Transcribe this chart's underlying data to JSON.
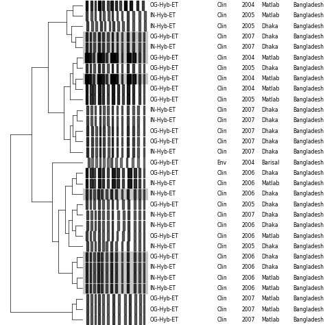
{
  "rows": [
    {
      "label": "OG-Hyb-ET",
      "source": "Clin",
      "year": "2004",
      "location": "Matlab",
      "country": "Bangladesh",
      "highlight": false
    },
    {
      "label": "IN-Hyb-ET",
      "source": "Clin",
      "year": "2005",
      "location": "Matlab",
      "country": "Bangladesh",
      "highlight": false
    },
    {
      "label": "IN-Hyb-ET",
      "source": "Clin",
      "year": "2005",
      "location": "Dhaka",
      "country": "Bangladesh",
      "highlight": false
    },
    {
      "label": "OG-Hyb-ET",
      "source": "Clin",
      "year": "2007",
      "location": "Dhaka",
      "country": "Bangladesh",
      "highlight": true
    },
    {
      "label": "IN-Hyb-ET",
      "source": "Clin",
      "year": "2007",
      "location": "Dhaka",
      "country": "Bangladesh",
      "highlight": true
    },
    {
      "label": "OG-Hyb-ET",
      "source": "Clin",
      "year": "2004",
      "location": "Matlab",
      "country": "Bangladesh",
      "highlight": true
    },
    {
      "label": "OG-Hyb-ET",
      "source": "Clin",
      "year": "2005",
      "location": "Dhaka",
      "country": "Bangladesh",
      "highlight": false
    },
    {
      "label": "OG-Hyb-ET",
      "source": "Clin",
      "year": "2004",
      "location": "Matlab",
      "country": "Bangladesh",
      "highlight": true
    },
    {
      "label": "OG-Hyb-ET",
      "source": "Clin",
      "year": "2004",
      "location": "Matlab",
      "country": "Bangladesh",
      "highlight": false
    },
    {
      "label": "OG-Hyb-ET",
      "source": "Clin",
      "year": "2005",
      "location": "Matlab",
      "country": "Bangladesh",
      "highlight": false
    },
    {
      "label": "IN-Hyb-ET",
      "source": "Clin",
      "year": "2007",
      "location": "Dhaka",
      "country": "Bangladesh",
      "highlight": false
    },
    {
      "label": "IN-Hyb-ET",
      "source": "Clin",
      "year": "2007",
      "location": "Dhaka",
      "country": "Bangladesh",
      "highlight": false
    },
    {
      "label": "OG-Hyb-ET",
      "source": "Clin",
      "year": "2007",
      "location": "Dhaka",
      "country": "Bangladesh",
      "highlight": false
    },
    {
      "label": "OG-Hyb-ET",
      "source": "Clin",
      "year": "2007",
      "location": "Dhaka",
      "country": "Bangladesh",
      "highlight": false
    },
    {
      "label": "IN-Hyb-ET",
      "source": "Clin",
      "year": "2007",
      "location": "Dhaka",
      "country": "Bangladesh",
      "highlight": false
    },
    {
      "label": "OG-Hyb-ET",
      "source": "Env",
      "year": "2004",
      "location": "Barisal",
      "country": "Bangladesh",
      "highlight": false
    },
    {
      "label": "OG-Hyb-ET",
      "source": "Clin",
      "year": "2006",
      "location": "Dhaka",
      "country": "Bangladesh",
      "highlight": false
    },
    {
      "label": "IN-Hyb-ET",
      "source": "Clin",
      "year": "2006",
      "location": "Matlab",
      "country": "Bangladesh",
      "highlight": false
    },
    {
      "label": "IN-Hyb-ET",
      "source": "Clin",
      "year": "2006",
      "location": "Dhaka",
      "country": "Bangladesh",
      "highlight": true
    },
    {
      "label": "OG-Hyb-ET",
      "source": "Clin",
      "year": "2005",
      "location": "Dhaka",
      "country": "Bangladesh",
      "highlight": false
    },
    {
      "label": "IN-Hyb-ET",
      "source": "Clin",
      "year": "2007",
      "location": "Dhaka",
      "country": "Bangladesh",
      "highlight": false
    },
    {
      "label": "IN-Hyb-ET",
      "source": "Clin",
      "year": "2006",
      "location": "Dhaka",
      "country": "Bangladesh",
      "highlight": false
    },
    {
      "label": "OG-Hyb-ET",
      "source": "Clin",
      "year": "2006",
      "location": "Matlab",
      "country": "Bangladesh",
      "highlight": false
    },
    {
      "label": "IN-Hyb-ET",
      "source": "Clin",
      "year": "2005",
      "location": "Dhaka",
      "country": "Bangladesh",
      "highlight": false
    },
    {
      "label": "OG-Hyb-ET",
      "source": "Clin",
      "year": "2006",
      "location": "Dhaka",
      "country": "Bangladesh",
      "highlight": true
    },
    {
      "label": "IN-Hyb-ET",
      "source": "Clin",
      "year": "2006",
      "location": "Dhaka",
      "country": "Bangladesh",
      "highlight": true
    },
    {
      "label": "IN-Hyb-ET",
      "source": "Clin",
      "year": "2006",
      "location": "Matlab",
      "country": "Bangladesh",
      "highlight": true
    },
    {
      "label": "IN-Hyb-ET",
      "source": "Clin",
      "year": "2006",
      "location": "Matlab",
      "country": "Bangladesh",
      "highlight": true
    },
    {
      "label": "OG-Hyb-ET",
      "source": "Clin",
      "year": "2007",
      "location": "Matlab",
      "country": "Bangladesh",
      "highlight": false
    },
    {
      "label": "OG-Hyb-ET",
      "source": "Clin",
      "year": "2007",
      "location": "Matlab",
      "country": "Bangladesh",
      "highlight": false
    },
    {
      "label": "OG-Hyb-ET",
      "source": "Clin",
      "year": "2007",
      "location": "Matlab",
      "country": "Bangladesh",
      "highlight": false
    }
  ],
  "band_sets": [
    [
      3,
      8,
      12,
      16,
      20,
      25,
      29,
      34,
      38,
      43,
      49,
      56,
      62
    ],
    [
      3,
      8,
      12,
      17,
      21,
      26,
      30,
      35,
      40,
      46,
      52,
      58,
      64
    ],
    [
      4,
      9,
      13,
      18,
      22,
      27,
      31,
      36,
      41,
      46,
      52,
      58,
      64
    ],
    [
      3,
      7,
      11,
      16,
      20,
      25,
      30,
      35,
      40,
      46,
      52,
      58,
      63
    ],
    [
      3,
      7,
      11,
      16,
      20,
      25,
      30,
      35,
      40,
      46,
      52,
      58,
      63
    ],
    [
      2,
      6,
      10,
      15,
      19,
      24,
      29,
      34,
      40,
      46,
      52,
      58,
      63
    ],
    [
      3,
      7,
      11,
      16,
      20,
      25,
      30,
      35,
      40,
      46,
      52,
      58,
      63
    ],
    [
      2,
      6,
      10,
      15,
      19,
      24,
      29,
      34,
      40,
      46,
      52,
      58,
      63
    ],
    [
      3,
      7,
      11,
      16,
      20,
      25,
      30,
      36,
      41,
      46,
      52,
      58,
      63
    ],
    [
      3,
      7,
      11,
      16,
      20,
      25,
      30,
      36,
      41,
      46,
      52,
      58,
      63
    ],
    [
      4,
      8,
      12,
      17,
      21,
      25,
      30,
      35,
      40,
      46,
      52,
      57,
      63
    ],
    [
      4,
      8,
      12,
      17,
      21,
      25,
      30,
      35,
      40,
      46,
      52,
      57,
      63
    ],
    [
      4,
      9,
      13,
      17,
      21,
      26,
      30,
      35,
      40,
      46,
      52,
      57,
      63
    ],
    [
      4,
      9,
      13,
      17,
      21,
      26,
      30,
      35,
      40,
      46,
      52,
      57,
      63
    ],
    [
      4,
      9,
      13,
      17,
      21,
      26,
      30,
      35,
      40,
      46,
      52,
      57,
      63
    ],
    [
      5,
      9,
      13,
      17,
      21,
      25,
      29,
      34,
      39,
      45,
      51,
      57,
      63
    ],
    [
      3,
      7,
      11,
      16,
      20,
      25,
      30,
      35,
      41,
      47,
      53,
      58,
      63
    ],
    [
      3,
      7,
      11,
      16,
      20,
      25,
      30,
      35,
      41,
      47,
      53,
      58,
      63
    ],
    [
      3,
      7,
      11,
      15,
      19,
      24,
      29,
      34,
      40,
      46,
      53,
      58,
      63
    ],
    [
      3,
      7,
      11,
      16,
      20,
      25,
      30,
      35,
      41,
      47,
      53,
      58,
      63
    ],
    [
      4,
      8,
      12,
      16,
      20,
      25,
      30,
      36,
      42,
      47,
      53,
      58,
      63
    ],
    [
      4,
      8,
      12,
      16,
      20,
      25,
      30,
      36,
      42,
      47,
      53,
      58,
      63
    ],
    [
      3,
      7,
      11,
      16,
      20,
      25,
      30,
      35,
      41,
      47,
      53,
      58,
      63
    ],
    [
      4,
      8,
      12,
      16,
      20,
      24,
      29,
      34,
      40,
      46,
      53,
      58,
      63
    ],
    [
      3,
      7,
      11,
      15,
      19,
      24,
      29,
      34,
      40,
      46,
      53,
      58,
      63
    ],
    [
      3,
      7,
      11,
      15,
      19,
      24,
      29,
      34,
      40,
      46,
      53,
      58,
      63
    ],
    [
      3,
      7,
      11,
      15,
      19,
      24,
      29,
      34,
      40,
      46,
      53,
      58,
      63
    ],
    [
      3,
      7,
      11,
      15,
      19,
      24,
      29,
      34,
      40,
      46,
      53,
      58,
      63
    ],
    [
      4,
      8,
      12,
      16,
      20,
      25,
      31,
      37,
      43,
      48,
      54,
      59,
      63
    ],
    [
      4,
      8,
      12,
      16,
      20,
      25,
      31,
      37,
      43,
      48,
      54,
      59,
      63
    ],
    [
      4,
      8,
      12,
      16,
      20,
      25,
      31,
      37,
      43,
      48,
      54,
      59,
      63
    ]
  ],
  "band_widths": [
    [
      2,
      2,
      2,
      3,
      2,
      2,
      3,
      2,
      2,
      3,
      3,
      2,
      2
    ],
    [
      2,
      2,
      2,
      2,
      2,
      2,
      2,
      2,
      2,
      2,
      2,
      2,
      2
    ],
    [
      2,
      2,
      2,
      2,
      2,
      2,
      2,
      2,
      2,
      2,
      2,
      2,
      2
    ],
    [
      2,
      2,
      2,
      2,
      2,
      2,
      2,
      2,
      2,
      2,
      2,
      2,
      2
    ],
    [
      2,
      2,
      2,
      2,
      2,
      2,
      2,
      2,
      2,
      2,
      2,
      2,
      2
    ],
    [
      3,
      3,
      2,
      4,
      3,
      2,
      4,
      3,
      2,
      4,
      3,
      2,
      2
    ],
    [
      2,
      2,
      2,
      2,
      2,
      2,
      2,
      2,
      2,
      2,
      2,
      2,
      2
    ],
    [
      3,
      3,
      2,
      4,
      3,
      2,
      4,
      3,
      2,
      4,
      3,
      2,
      2
    ],
    [
      2,
      3,
      2,
      3,
      2,
      2,
      3,
      2,
      2,
      3,
      2,
      2,
      2
    ],
    [
      2,
      3,
      2,
      3,
      2,
      2,
      3,
      2,
      2,
      3,
      2,
      2,
      2
    ],
    [
      2,
      2,
      2,
      2,
      2,
      2,
      2,
      2,
      2,
      2,
      2,
      2,
      2
    ],
    [
      2,
      2,
      2,
      2,
      2,
      2,
      2,
      2,
      2,
      2,
      2,
      2,
      2
    ],
    [
      2,
      2,
      2,
      2,
      2,
      2,
      2,
      2,
      2,
      2,
      2,
      2,
      2
    ],
    [
      2,
      2,
      2,
      2,
      2,
      2,
      2,
      2,
      2,
      2,
      2,
      2,
      2
    ],
    [
      2,
      2,
      2,
      2,
      2,
      2,
      2,
      2,
      2,
      2,
      2,
      2,
      2
    ],
    [
      2,
      2,
      2,
      2,
      2,
      2,
      2,
      2,
      2,
      2,
      2,
      2,
      2
    ],
    [
      2,
      3,
      2,
      3,
      2,
      2,
      4,
      3,
      2,
      4,
      3,
      2,
      2
    ],
    [
      2,
      3,
      2,
      3,
      2,
      2,
      4,
      3,
      2,
      4,
      3,
      2,
      2
    ],
    [
      2,
      2,
      2,
      2,
      2,
      2,
      2,
      2,
      2,
      2,
      2,
      2,
      2
    ],
    [
      2,
      2,
      2,
      2,
      2,
      2,
      2,
      2,
      2,
      2,
      2,
      2,
      2
    ],
    [
      2,
      2,
      2,
      2,
      2,
      2,
      2,
      2,
      2,
      2,
      2,
      2,
      2
    ],
    [
      2,
      2,
      2,
      2,
      2,
      2,
      2,
      2,
      2,
      2,
      2,
      2,
      2
    ],
    [
      2,
      2,
      2,
      2,
      2,
      2,
      2,
      2,
      2,
      2,
      2,
      2,
      2
    ],
    [
      2,
      2,
      2,
      2,
      2,
      2,
      2,
      2,
      2,
      2,
      2,
      2,
      2
    ],
    [
      2,
      2,
      2,
      2,
      2,
      2,
      2,
      2,
      2,
      2,
      2,
      2,
      2
    ],
    [
      2,
      2,
      2,
      2,
      2,
      2,
      2,
      2,
      2,
      2,
      2,
      2,
      2
    ],
    [
      2,
      2,
      2,
      2,
      2,
      2,
      2,
      2,
      2,
      2,
      2,
      2,
      2
    ],
    [
      2,
      2,
      2,
      2,
      2,
      2,
      2,
      2,
      2,
      2,
      2,
      2,
      2
    ],
    [
      2,
      2,
      2,
      2,
      2,
      2,
      2,
      2,
      2,
      2,
      2,
      2,
      2
    ],
    [
      2,
      2,
      2,
      2,
      2,
      2,
      2,
      2,
      2,
      2,
      2,
      2,
      2
    ],
    [
      2,
      2,
      2,
      2,
      2,
      2,
      2,
      2,
      2,
      2,
      2,
      2,
      2
    ]
  ],
  "band_alphas": [
    [
      0.9,
      0.8,
      0.7,
      1.0,
      0.8,
      0.7,
      0.9,
      0.8,
      0.7,
      1.0,
      0.9,
      0.8,
      0.7
    ],
    [
      0.7,
      0.6,
      0.6,
      0.7,
      0.6,
      0.6,
      0.7,
      0.6,
      0.6,
      0.7,
      0.6,
      0.6,
      0.6
    ],
    [
      0.7,
      0.6,
      0.6,
      0.7,
      0.6,
      0.6,
      0.7,
      0.6,
      0.6,
      0.7,
      0.6,
      0.6,
      0.6
    ],
    [
      0.8,
      0.7,
      0.6,
      0.8,
      0.7,
      0.6,
      0.8,
      0.7,
      0.6,
      0.8,
      0.7,
      0.6,
      0.6
    ],
    [
      0.8,
      0.7,
      0.6,
      0.8,
      0.7,
      0.6,
      0.8,
      0.7,
      0.6,
      0.8,
      0.7,
      0.6,
      0.6
    ],
    [
      1.0,
      0.9,
      0.7,
      1.0,
      0.9,
      0.7,
      1.0,
      0.9,
      0.7,
      1.0,
      0.9,
      0.7,
      0.6
    ],
    [
      0.8,
      0.7,
      0.6,
      0.8,
      0.7,
      0.6,
      0.8,
      0.7,
      0.6,
      0.8,
      0.7,
      0.6,
      0.6
    ],
    [
      1.0,
      0.9,
      0.7,
      1.0,
      0.9,
      0.7,
      1.0,
      0.9,
      0.7,
      1.0,
      0.9,
      0.7,
      0.6
    ],
    [
      0.9,
      0.8,
      0.7,
      0.9,
      0.8,
      0.7,
      0.9,
      0.8,
      0.7,
      0.9,
      0.8,
      0.7,
      0.6
    ],
    [
      0.9,
      0.8,
      0.7,
      0.9,
      0.8,
      0.7,
      0.9,
      0.8,
      0.7,
      0.9,
      0.8,
      0.7,
      0.6
    ],
    [
      0.7,
      0.6,
      0.6,
      0.7,
      0.6,
      0.6,
      0.7,
      0.6,
      0.6,
      0.7,
      0.6,
      0.6,
      0.6
    ],
    [
      0.7,
      0.6,
      0.6,
      0.7,
      0.6,
      0.6,
      0.7,
      0.6,
      0.6,
      0.7,
      0.6,
      0.6,
      0.6
    ],
    [
      0.8,
      0.7,
      0.6,
      0.8,
      0.7,
      0.6,
      0.8,
      0.7,
      0.6,
      0.8,
      0.7,
      0.6,
      0.6
    ],
    [
      0.8,
      0.7,
      0.6,
      0.8,
      0.7,
      0.6,
      0.8,
      0.7,
      0.6,
      0.8,
      0.7,
      0.6,
      0.6
    ],
    [
      0.8,
      0.7,
      0.6,
      0.8,
      0.7,
      0.6,
      0.8,
      0.7,
      0.6,
      0.8,
      0.7,
      0.6,
      0.6
    ],
    [
      0.6,
      0.5,
      0.5,
      0.6,
      0.5,
      0.5,
      0.6,
      0.5,
      0.5,
      0.6,
      0.5,
      0.5,
      0.5
    ],
    [
      0.9,
      0.8,
      0.7,
      0.9,
      0.8,
      0.7,
      0.9,
      0.8,
      0.7,
      0.9,
      0.8,
      0.7,
      0.6
    ],
    [
      0.9,
      0.8,
      0.7,
      0.9,
      0.8,
      0.7,
      0.9,
      0.8,
      0.7,
      0.9,
      0.8,
      0.7,
      0.6
    ],
    [
      0.8,
      0.7,
      0.6,
      0.8,
      0.7,
      0.6,
      0.8,
      0.7,
      0.6,
      0.8,
      0.7,
      0.6,
      0.6
    ],
    [
      0.7,
      0.6,
      0.6,
      0.7,
      0.6,
      0.6,
      0.7,
      0.6,
      0.6,
      0.7,
      0.6,
      0.6,
      0.6
    ],
    [
      0.7,
      0.6,
      0.6,
      0.7,
      0.6,
      0.6,
      0.7,
      0.6,
      0.6,
      0.7,
      0.6,
      0.6,
      0.6
    ],
    [
      0.7,
      0.6,
      0.6,
      0.7,
      0.6,
      0.6,
      0.7,
      0.6,
      0.6,
      0.7,
      0.6,
      0.6,
      0.6
    ],
    [
      0.7,
      0.6,
      0.6,
      0.7,
      0.6,
      0.6,
      0.7,
      0.6,
      0.6,
      0.7,
      0.6,
      0.6,
      0.6
    ],
    [
      0.7,
      0.6,
      0.6,
      0.7,
      0.6,
      0.6,
      0.7,
      0.6,
      0.6,
      0.7,
      0.6,
      0.6,
      0.6
    ],
    [
      0.8,
      0.7,
      0.6,
      0.8,
      0.7,
      0.6,
      0.8,
      0.7,
      0.6,
      0.8,
      0.7,
      0.6,
      0.6
    ],
    [
      0.8,
      0.7,
      0.6,
      0.8,
      0.7,
      0.6,
      0.8,
      0.7,
      0.6,
      0.8,
      0.7,
      0.6,
      0.6
    ],
    [
      0.8,
      0.7,
      0.6,
      0.8,
      0.7,
      0.6,
      0.8,
      0.7,
      0.6,
      0.8,
      0.7,
      0.6,
      0.6
    ],
    [
      0.8,
      0.7,
      0.6,
      0.8,
      0.7,
      0.6,
      0.8,
      0.7,
      0.6,
      0.8,
      0.7,
      0.6,
      0.6
    ],
    [
      0.7,
      0.6,
      0.6,
      0.7,
      0.6,
      0.6,
      0.7,
      0.6,
      0.6,
      0.7,
      0.6,
      0.6,
      0.6
    ],
    [
      0.7,
      0.6,
      0.6,
      0.7,
      0.6,
      0.6,
      0.7,
      0.6,
      0.6,
      0.7,
      0.6,
      0.6,
      0.6
    ],
    [
      0.7,
      0.6,
      0.6,
      0.7,
      0.6,
      0.6,
      0.7,
      0.6,
      0.6,
      0.7,
      0.6,
      0.6,
      0.6
    ]
  ],
  "highlight_color": "#c8c8c8",
  "background_color": "#ffffff",
  "text_color": "#000000",
  "gel_bg_color": "#f0f0f0",
  "font_size": 5.5,
  "lw": 0.55
}
